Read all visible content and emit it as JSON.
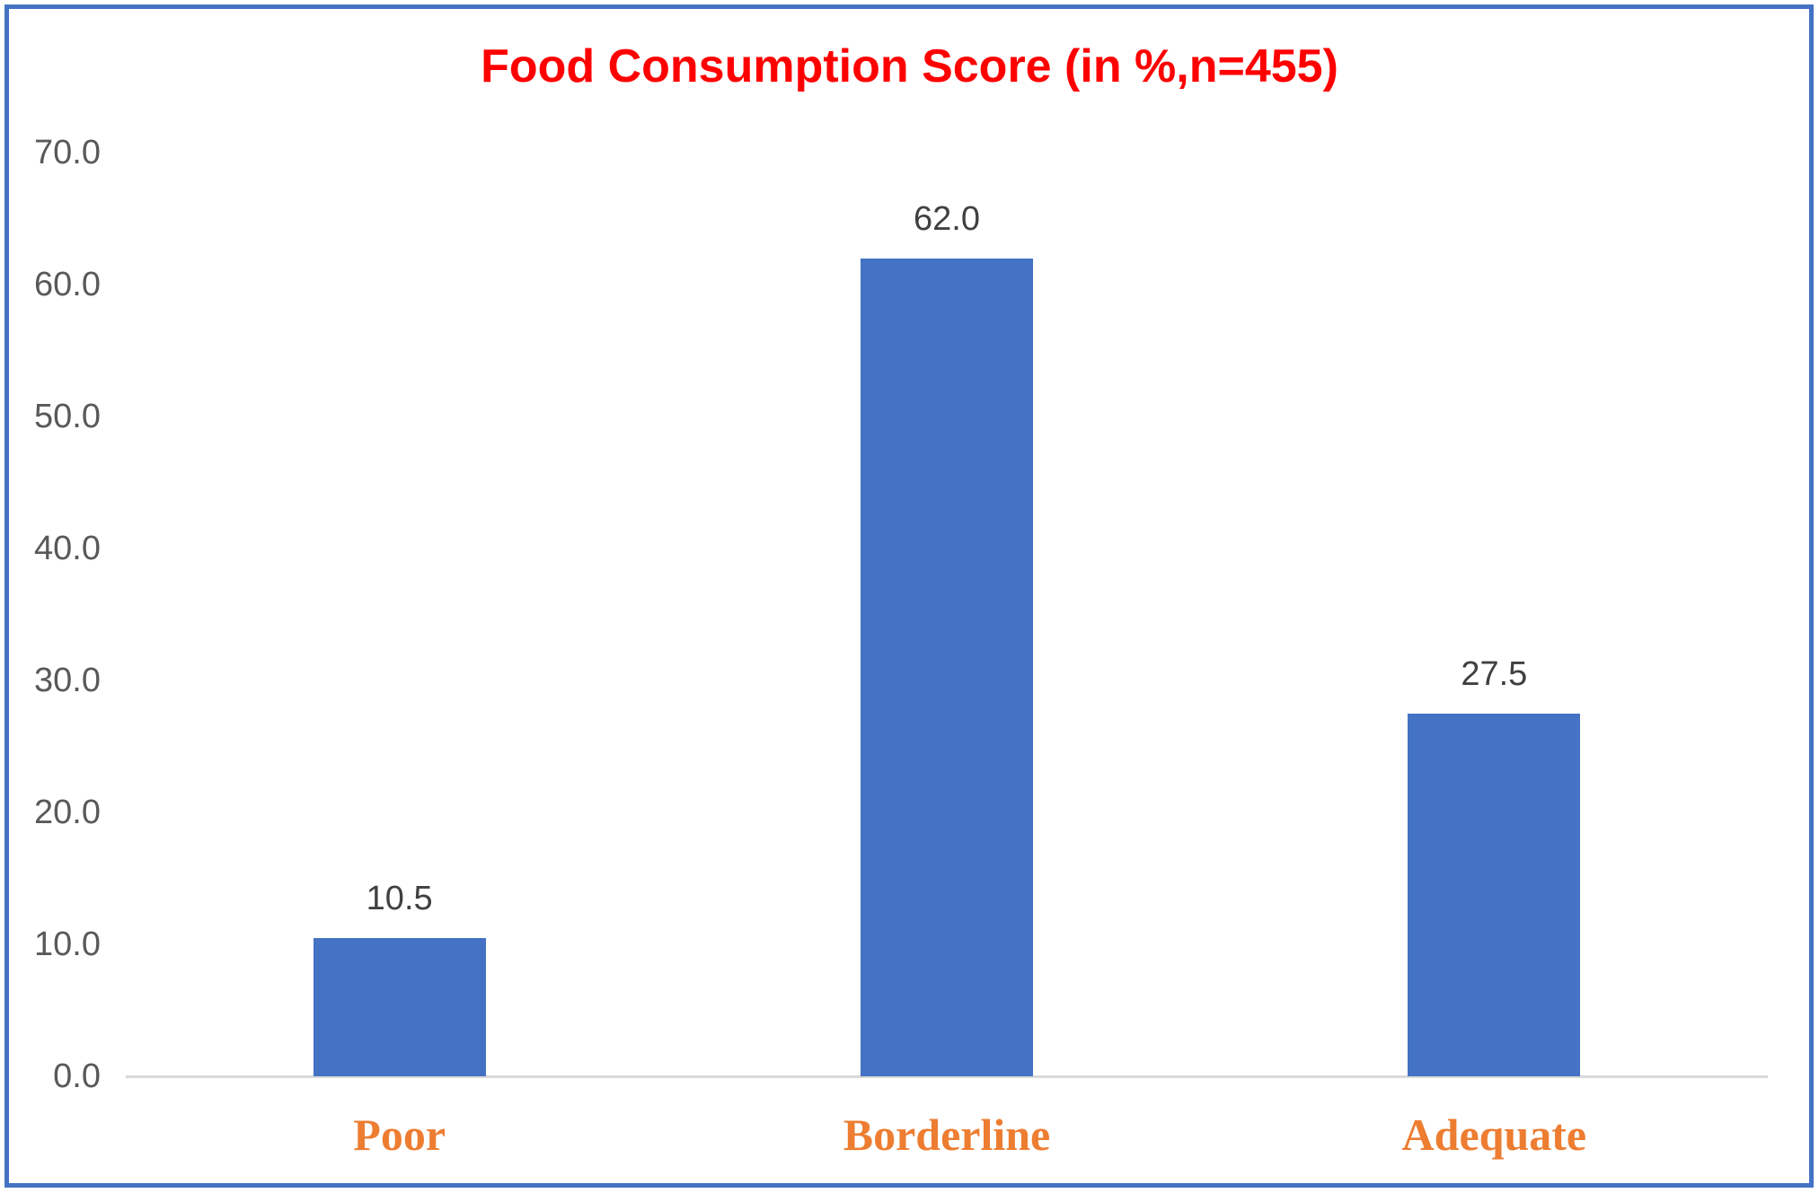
{
  "page": {
    "background_color": "#FFFFFF",
    "frame_border_color": "#4472C4"
  },
  "chart_data": {
    "type": "bar",
    "title": "Food Consumption Score (in %,n=455)",
    "categories": [
      "Poor",
      "Borderline",
      "Adequate"
    ],
    "values": [
      10.5,
      62.0,
      27.5
    ],
    "data_labels": [
      "10.5",
      "62.0",
      "27.5"
    ],
    "yticks": [
      "0.0",
      "10.0",
      "20.0",
      "30.0",
      "40.0",
      "50.0",
      "60.0",
      "70.0"
    ],
    "ytick_values": [
      0,
      10,
      20,
      30,
      40,
      50,
      60,
      70
    ],
    "ylim": [
      0,
      70
    ],
    "xlabel": "",
    "ylabel": "",
    "grid": false,
    "legend": "none",
    "colors": {
      "bar": "#4472C4",
      "title": "#FF0000",
      "category_label": "#ED7D31",
      "tick_label": "#595959",
      "data_label": "#404040",
      "axis_line": "#D9D9D9"
    }
  }
}
